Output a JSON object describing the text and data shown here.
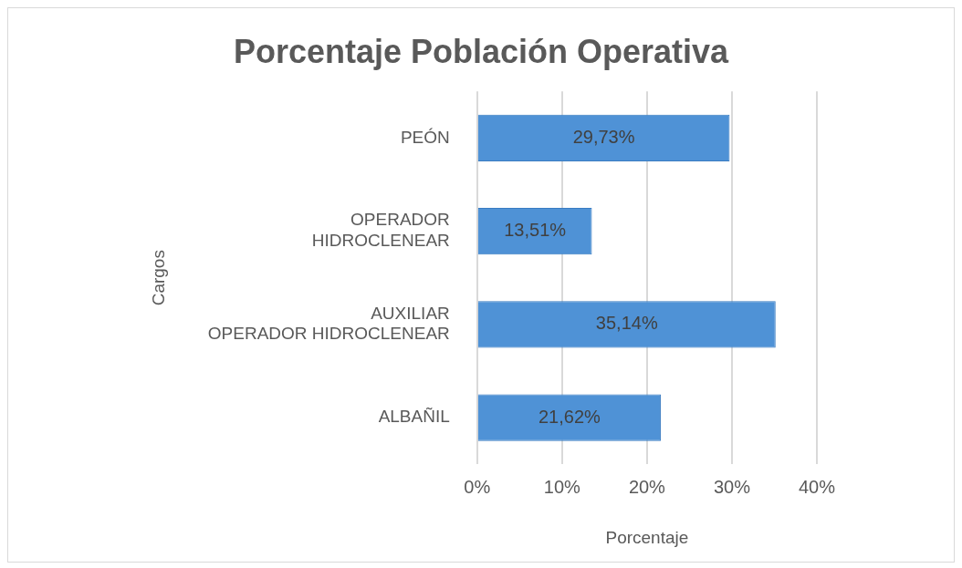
{
  "chart_data": {
    "type": "bar",
    "orientation": "horizontal",
    "title": "Porcentaje Población Operativa",
    "xlabel": "Porcentaje",
    "ylabel": "Cargos",
    "categories": [
      "PEÓN",
      "OPERADOR HIDROCLENEAR",
      "AUXILIAR OPERADOR HIDROCLENEAR",
      "ALBAÑIL"
    ],
    "values": [
      29.73,
      13.51,
      35.14,
      21.62
    ],
    "value_labels": [
      "29,73%",
      "13,51%",
      "35,14%",
      "21,62%"
    ],
    "color": "#4f92d6",
    "xlim": [
      0,
      40
    ],
    "xticks": [
      {
        "value": 0,
        "label": "0%"
      },
      {
        "value": 10,
        "label": "10%"
      },
      {
        "value": 20,
        "label": "20%"
      },
      {
        "value": 30,
        "label": "30%"
      },
      {
        "value": 40,
        "label": "40%"
      }
    ],
    "grid": "x"
  }
}
